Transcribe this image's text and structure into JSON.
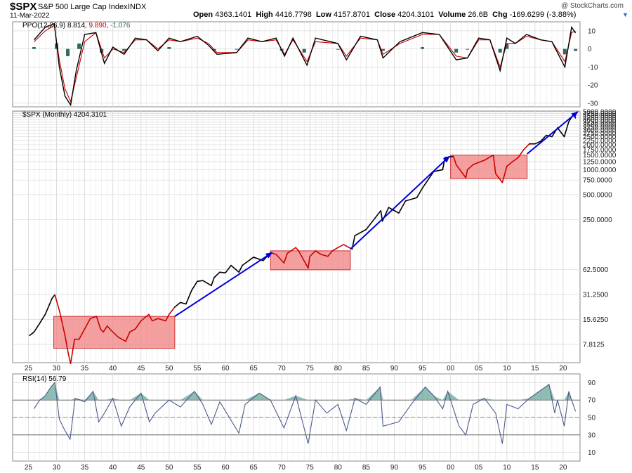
{
  "header": {
    "symbol": "$SPX",
    "description": "S&P 500 Large Cap Index",
    "exchange": "INDX",
    "date": "11-Mar-2022",
    "watermark": "@ StockCharts.com",
    "open_label": "Open",
    "open": "4363.1401",
    "high_label": "High",
    "high": "4416.7798",
    "low_label": "Low",
    "low": "4157.8701",
    "close_label": "Close",
    "close": "4204.3101",
    "volume_label": "Volume",
    "volume": "26.6B",
    "chg_label": "Chg",
    "chg": "-169.6299 (-3.88%)",
    "dropdown_icon": "chevron-down-icon"
  },
  "ppo_panel": {
    "label": "PPO(12,26,9)",
    "value1": "8.814",
    "value2": "9.890",
    "value3": "-1.076",
    "value1_color": "#000000",
    "value2_color": "#cc0000",
    "value3_color": "#2e6b5e"
  },
  "price_panel": {
    "label": "$SPX (Monthly) 4204.3101"
  },
  "rsi_panel": {
    "label": "RSI(14) 56.79"
  },
  "colors": {
    "price_line": "#000000",
    "price_line_red": "#cc0000",
    "range_box_fill": "#f08080",
    "range_box_stroke": "#cc3333",
    "trend_arrow": "#0000dd",
    "ppo_histogram": "#2e6b5e",
    "rsi_line": "#4a5a8c",
    "rsi_fill": "#6aa59a",
    "grid": "#d9d9d9"
  },
  "chart_data": [
    {
      "type": "line",
      "panel": "ppo",
      "title": "PPO(12,26,9)",
      "y_ticks": [
        10,
        0,
        -10,
        -20,
        -30
      ],
      "ylim": [
        -32,
        15
      ],
      "series": [
        {
          "name": "PPO",
          "x": [
            1926,
            1928,
            1929.6,
            1930.5,
            1931.5,
            1932.5,
            1933.5,
            1935,
            1937,
            1938.5,
            1940,
            1942,
            1944,
            1946,
            1948,
            1950,
            1952,
            1955,
            1957,
            1958.5,
            1962,
            1964,
            1966.5,
            1969,
            1970.5,
            1972,
            1974.5,
            1976,
            1980,
            1981.5,
            1984,
            1987,
            1988,
            1991,
            1995,
            1998,
            2001,
            2003,
            2005,
            2007,
            2008.8,
            2010,
            2011.5,
            2013.5,
            2016,
            2018,
            2020.3,
            2021.5,
            2022.2
          ],
          "y": [
            5,
            12,
            14,
            -10,
            -26,
            -31,
            -12,
            8,
            9,
            -8,
            1,
            -3,
            6,
            5,
            -1,
            6,
            4,
            7,
            2,
            -3,
            -2,
            6,
            4,
            6,
            -4,
            6,
            -9,
            6,
            3,
            -6,
            7,
            5,
            -5,
            4,
            9,
            8,
            -6,
            -5,
            6,
            5,
            -12,
            6,
            3,
            8,
            5,
            4,
            -10,
            12,
            8.8
          ]
        },
        {
          "name": "Signal",
          "x": [
            1926,
            1928,
            1929.6,
            1930.5,
            1931.5,
            1932.5,
            1933.5,
            1935,
            1937,
            1938.5,
            1940,
            1942,
            1944,
            1946,
            1948,
            1950,
            1952,
            1955,
            1957,
            1958.5,
            1962,
            1964,
            1966.5,
            1969,
            1970.5,
            1972,
            1974.5,
            1976,
            1980,
            1981.5,
            1984,
            1987,
            1988,
            1991,
            1995,
            1998,
            2001,
            2003,
            2005,
            2007,
            2008.8,
            2010,
            2011.5,
            2013.5,
            2016,
            2018,
            2020.3,
            2021.5,
            2022.2
          ],
          "y": [
            4,
            10,
            13,
            -6,
            -22,
            -29,
            -16,
            4,
            9,
            -5,
            0,
            -2,
            5,
            5,
            0,
            5,
            4,
            6,
            3,
            -2,
            -2,
            5,
            4,
            5,
            -3,
            5,
            -7,
            4,
            3,
            -4,
            6,
            5,
            -3,
            3,
            8,
            8,
            -4,
            -5,
            5,
            5,
            -10,
            3,
            3,
            7,
            5,
            4,
            -7,
            9,
            9.9
          ]
        },
        {
          "name": "Histogram",
          "x": [
            1926,
            1930,
            1932,
            1934,
            1938,
            1942,
            1950,
            1958,
            1962,
            1970,
            1974,
            1980,
            1988,
            1995,
            2001,
            2003,
            2008.8,
            2010,
            2020.3,
            2022.2
          ],
          "y": [
            1,
            3,
            -4,
            3,
            -2,
            -1,
            1,
            -1,
            0,
            -1,
            -2,
            0,
            -1,
            1,
            -2,
            0,
            -2,
            3,
            -3,
            -1.1
          ]
        }
      ]
    },
    {
      "type": "line",
      "panel": "price",
      "title": "$SPX (Monthly) 4204.3101",
      "scale": "log",
      "y_ticks": [
        7.8125,
        15.625,
        31.25,
        62.5,
        250,
        500,
        750,
        1000,
        1250,
        1500,
        1750,
        2000,
        2250,
        2500,
        2750,
        3000,
        3250,
        3500,
        3750,
        4000,
        4250,
        4500,
        4750,
        5000
      ],
      "x_ticks": [
        "25",
        "30",
        "35",
        "40",
        "45",
        "50",
        "55",
        "60",
        "65",
        "70",
        "75",
        "80",
        "85",
        "90",
        "95",
        "00",
        "05",
        "10",
        "15",
        "20"
      ],
      "ylim": [
        4.7,
        5100
      ],
      "series": [
        {
          "name": "$SPX",
          "x": [
            1925.2,
            1926,
            1927,
            1928,
            1929.2,
            1929.7,
            1930.5,
            1931.5,
            1932.1,
            1932.5,
            1933.2,
            1934,
            1935,
            1936,
            1937.1,
            1937.8,
            1938.3,
            1939,
            1940,
            1941,
            1942.3,
            1943,
            1944,
            1945,
            1946.4,
            1947,
            1948,
            1949.4,
            1950,
            1951,
            1952,
            1953,
            1954,
            1955,
            1956,
            1957.5,
            1958,
            1959,
            1960,
            1961,
            1962.4,
            1963,
            1965,
            1966.7,
            1968,
            1969,
            1970.4,
            1971,
            1972.5,
            1973,
            1974.7,
            1975,
            1976,
            1977,
            1978.2,
            1979,
            1980,
            1981,
            1982.5,
            1983,
            1985,
            1987.6,
            1987.9,
            1989,
            1990.8,
            1992,
            1994,
            1995,
            1997,
            1998.6,
            1999,
            2000.5,
            2001,
            2002.7,
            2003,
            2004,
            2006,
            2007.6,
            2008,
            2009.2,
            2010,
            2011,
            2012,
            2013,
            2014,
            2015,
            2016,
            2017,
            2018,
            2019,
            2020.2,
            2021,
            2021.9,
            2022.2
          ],
          "y": [
            10,
            11,
            14,
            18,
            28,
            31,
            20,
            10,
            6,
            4.6,
            9,
            9,
            12,
            16,
            17,
            12,
            11,
            13,
            11,
            9.5,
            8.5,
            11,
            12,
            15,
            18,
            15,
            16,
            15,
            18,
            22,
            25,
            24,
            35,
            45,
            46,
            40,
            50,
            58,
            57,
            70,
            58,
            70,
            88,
            80,
            100,
            95,
            75,
            98,
            115,
            105,
            65,
            90,
            105,
            95,
            90,
            105,
            115,
            125,
            110,
            160,
            190,
            320,
            240,
            350,
            300,
            420,
            460,
            600,
            950,
            1000,
            1400,
            1450,
            1150,
            800,
            1000,
            1150,
            1300,
            1500,
            900,
            700,
            1100,
            1250,
            1400,
            1750,
            2050,
            2050,
            2200,
            2600,
            2500,
            3200,
            2500,
            3800,
            4700,
            4204
          ]
        }
      ],
      "annotations": {
        "range_boxes": [
          [
            1929.5,
            1951,
            7,
            17
          ],
          [
            1968,
            1982.2,
            62,
            105
          ],
          [
            2000,
            2013.6,
            780,
            1500
          ]
        ],
        "trend_arrows": [
          [
            1951,
            17,
            1968.3,
            100
          ],
          [
            1982.2,
            110,
            1999.8,
            1450
          ],
          [
            2013.6,
            1550,
            2022.6,
            5000
          ]
        ]
      }
    },
    {
      "type": "line",
      "panel": "rsi",
      "title": "RSI(14) 56.79",
      "y_ticks": [
        90,
        70,
        50,
        30,
        10
      ],
      "ylim": [
        0,
        100
      ],
      "series": [
        {
          "name": "RSI(14)",
          "x": [
            1926,
            1927,
            1928,
            1929,
            1929.7,
            1930.5,
            1931.5,
            1932.4,
            1933.3,
            1935,
            1936.5,
            1937.5,
            1938.5,
            1940,
            1941.5,
            1943,
            1945,
            1946.5,
            1947.5,
            1950,
            1952,
            1954.5,
            1956,
            1957.5,
            1959,
            1962.4,
            1963.5,
            1966,
            1968,
            1970.4,
            1972.5,
            1974.7,
            1976,
            1978,
            1980,
            1981.5,
            1983,
            1985,
            1987.5,
            1988,
            1990.8,
            1993,
            1995.5,
            1997,
            1998.6,
            1999.5,
            2001.5,
            2002.7,
            2004,
            2006,
            2008,
            2009.2,
            2010,
            2012,
            2014,
            2017.5,
            2018.5,
            2019,
            2020.2,
            2021,
            2021.5,
            2022.2
          ],
          "y": [
            60,
            70,
            75,
            85,
            90,
            48,
            35,
            25,
            72,
            68,
            80,
            45,
            55,
            72,
            40,
            62,
            78,
            45,
            55,
            70,
            62,
            80,
            65,
            42,
            68,
            32,
            65,
            78,
            70,
            38,
            75,
            20,
            70,
            55,
            65,
            35,
            72,
            65,
            85,
            40,
            45,
            65,
            85,
            75,
            60,
            80,
            40,
            30,
            65,
            72,
            55,
            20,
            65,
            60,
            72,
            88,
            55,
            70,
            40,
            80,
            70,
            57
          ]
        }
      ]
    }
  ]
}
